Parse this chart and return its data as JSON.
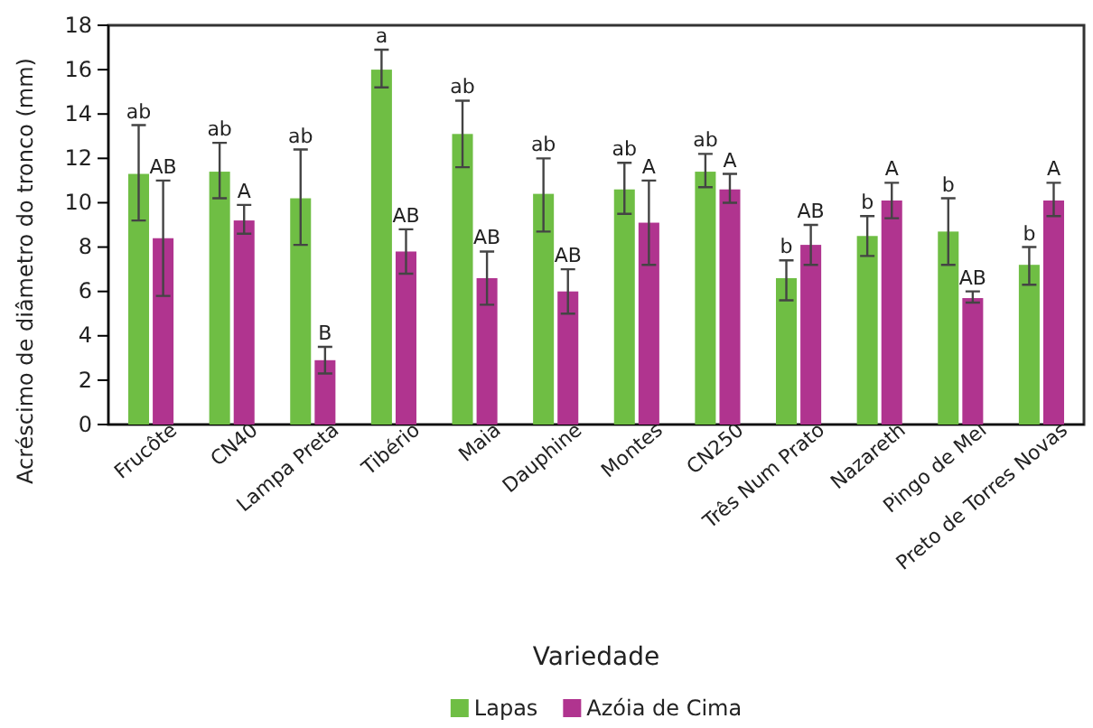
{
  "chart_data": {
    "type": "bar",
    "xlabel": "Variedade",
    "ylabel": "Acréscimo de diâmetro do tronco (mm)",
    "categories": [
      "Frucôte",
      "CN40",
      "Lampa Preta",
      "Tibério",
      "Maia",
      "Dauphine",
      "Montes",
      "CN250",
      "Três Num Prato",
      "Nazareth",
      "Pingo de Mel",
      "Preto de Torres Novas"
    ],
    "series": [
      {
        "name": "Lapas",
        "color": "#6fbe44",
        "values": [
          11.3,
          11.4,
          10.2,
          16.0,
          13.1,
          10.4,
          10.6,
          11.4,
          6.6,
          8.5,
          8.7,
          7.2
        ],
        "errors": [
          [
            9.2,
            13.5
          ],
          [
            10.2,
            12.7
          ],
          [
            8.1,
            12.4
          ],
          [
            15.2,
            16.9
          ],
          [
            11.6,
            14.6
          ],
          [
            8.7,
            12.0
          ],
          [
            9.5,
            11.8
          ],
          [
            10.7,
            12.2
          ],
          [
            5.6,
            7.4
          ],
          [
            7.6,
            9.4
          ],
          [
            7.2,
            10.2
          ],
          [
            6.3,
            8.0
          ]
        ]
      },
      {
        "name": "Azóia de Cima",
        "color": "#b0348f",
        "values": [
          8.4,
          9.2,
          2.9,
          7.8,
          6.6,
          6.0,
          9.1,
          10.6,
          8.1,
          10.1,
          5.7,
          10.1
        ],
        "errors": [
          [
            5.8,
            11.0
          ],
          [
            8.6,
            9.9
          ],
          [
            2.3,
            3.5
          ],
          [
            6.8,
            8.8
          ],
          [
            5.4,
            7.8
          ],
          [
            5.0,
            7.0
          ],
          [
            7.2,
            11.0
          ],
          [
            10.0,
            11.3
          ],
          [
            7.2,
            9.0
          ],
          [
            9.3,
            10.9
          ],
          [
            5.5,
            6.0
          ],
          [
            9.4,
            10.9
          ]
        ]
      }
    ],
    "ylim": [
      0,
      18
    ],
    "yticks": [
      0,
      2,
      4,
      6,
      8,
      10,
      12,
      14,
      16,
      18
    ],
    "grid": false,
    "legend": "bottom",
    "annotations": [
      "ab",
      "AB",
      "ab",
      "A",
      "ab",
      "B",
      "a",
      "AB",
      "ab",
      "AB",
      "ab",
      "AB",
      "ab",
      "A",
      "ab",
      "A",
      "b",
      "AB",
      "b",
      "A",
      "b",
      "AB",
      "b",
      "A"
    ]
  }
}
